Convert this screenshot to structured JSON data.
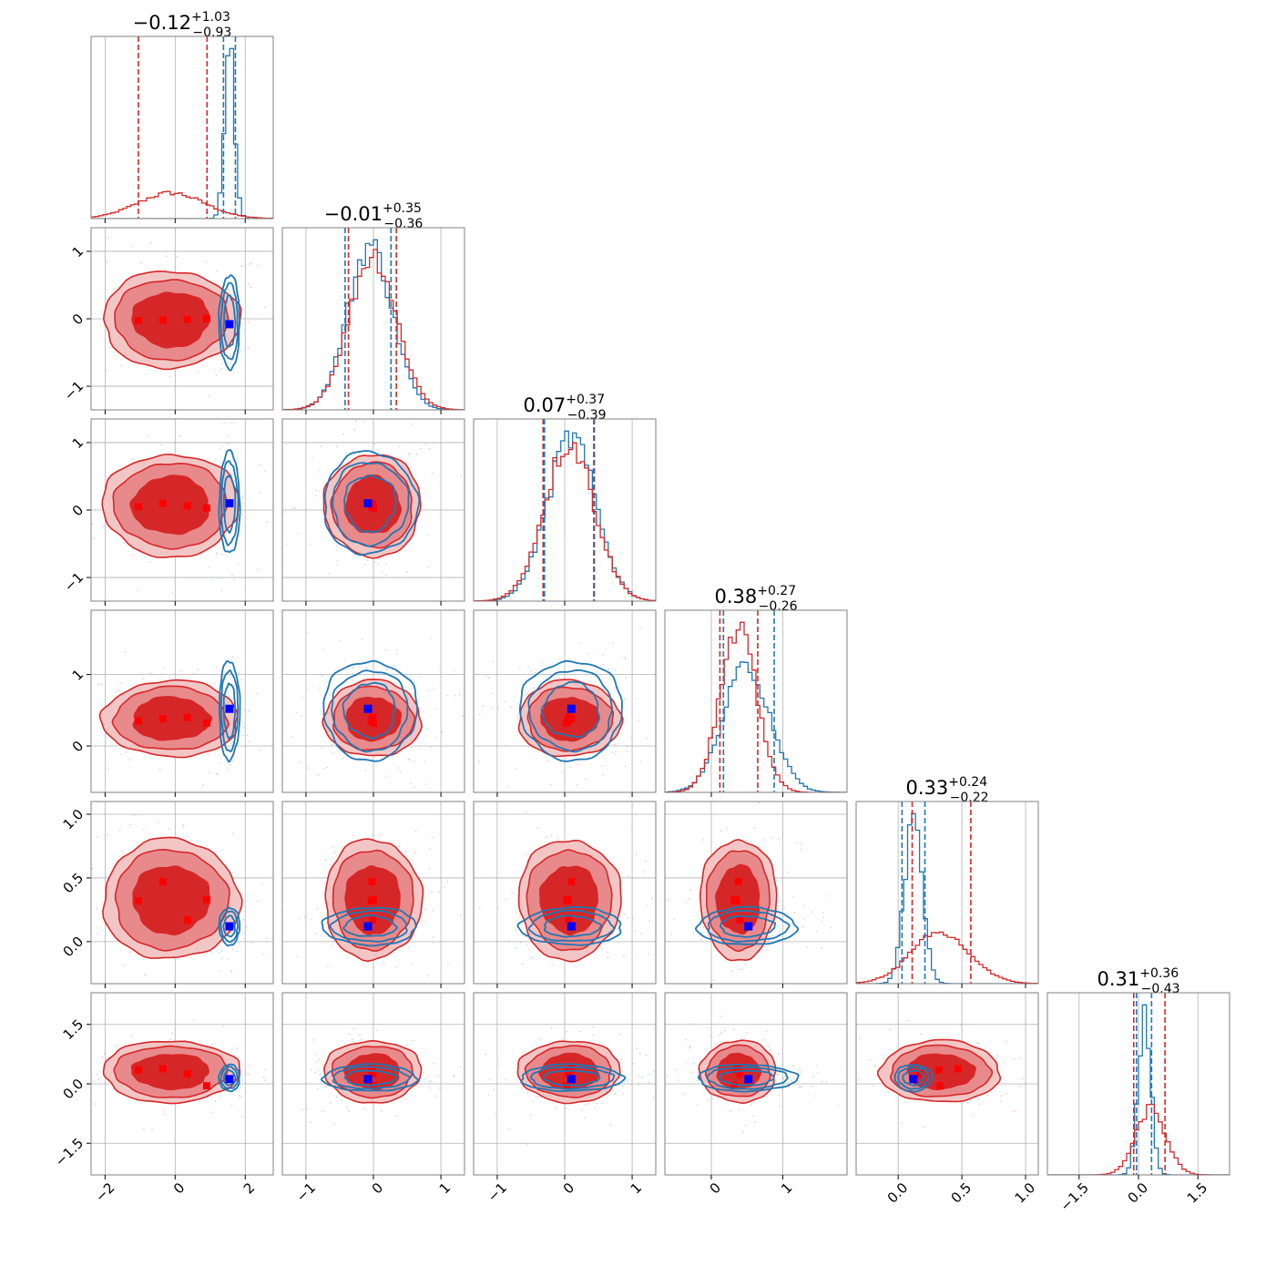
{
  "chart_data": {
    "type": "scatter",
    "kind": "corner-plot",
    "n_params": 6,
    "series": [
      {
        "name": "",
        "color": "#d62728"
      },
      {
        "name": "",
        "color": "#1f77b4"
      }
    ],
    "titles": [
      {
        "value": "−0.12",
        "plus": "+1.03",
        "minus": "−0.93"
      },
      {
        "value": "−0.01",
        "plus": "+0.35",
        "minus": "−0.36"
      },
      {
        "value": "0.07",
        "plus": "+0.37",
        "minus": "−0.39"
      },
      {
        "value": "0.38",
        "plus": "+0.27",
        "minus": "−0.26"
      },
      {
        "value": "0.33",
        "plus": "+0.24",
        "minus": "−0.22"
      },
      {
        "value": "0.31",
        "plus": "+0.36",
        "minus": "−0.43"
      }
    ],
    "ranges": [
      [
        -2.4,
        2.8
      ],
      [
        -1.35,
        1.35
      ],
      [
        -1.35,
        1.35
      ],
      [
        -0.65,
        1.9
      ],
      [
        -0.33,
        1.1
      ],
      [
        -2.3,
        2.3
      ]
    ],
    "ticks": [
      [
        {
          "v": -2,
          "t": "−2"
        },
        {
          "v": 0,
          "t": "0"
        },
        {
          "v": 2,
          "t": "2"
        }
      ],
      [
        {
          "v": -1,
          "t": "−1"
        },
        {
          "v": 0,
          "t": "0"
        },
        {
          "v": 1,
          "t": "1"
        }
      ],
      [
        {
          "v": -1,
          "t": "−1"
        },
        {
          "v": 0,
          "t": "0"
        },
        {
          "v": 1,
          "t": "1"
        }
      ],
      [
        {
          "v": 0,
          "t": "0"
        },
        {
          "v": 1,
          "t": "1"
        }
      ],
      [
        {
          "v": 0.0,
          "t": "0.0"
        },
        {
          "v": 0.5,
          "t": "0.5"
        },
        {
          "v": 1.0,
          "t": "1.0"
        }
      ],
      [
        {
          "v": -1.5,
          "t": "−1.5"
        },
        {
          "v": 0.0,
          "t": "0.0"
        },
        {
          "v": 1.5,
          "t": "1.5"
        }
      ]
    ],
    "yticks": [
      [],
      [
        {
          "v": -1,
          "t": "−1"
        },
        {
          "v": 0,
          "t": "0"
        },
        {
          "v": 1,
          "t": "1"
        }
      ],
      [
        {
          "v": -1,
          "t": "−1"
        },
        {
          "v": 0,
          "t": "0"
        },
        {
          "v": 1,
          "t": "1"
        }
      ],
      [
        {
          "v": 0,
          "t": "0"
        },
        {
          "v": 1,
          "t": "1"
        }
      ],
      [
        {
          "v": 0.0,
          "t": "0.0"
        },
        {
          "v": 0.5,
          "t": "0.5"
        },
        {
          "v": 1.0,
          "t": "1.0"
        }
      ],
      [
        {
          "v": -1.5,
          "t": "−1.5"
        },
        {
          "v": 0.0,
          "t": "0.0"
        },
        {
          "v": 1.5,
          "t": "1.5"
        }
      ]
    ],
    "red_posterior": {
      "mean": [
        -0.12,
        -0.01,
        0.07,
        0.38,
        0.33,
        0.31
      ],
      "sigma": [
        0.95,
        0.35,
        0.37,
        0.26,
        0.23,
        0.38
      ]
    },
    "blue_posterior": {
      "mean": [
        1.55,
        -0.05,
        0.1,
        0.5,
        0.12,
        0.15
      ],
      "sigma": [
        0.14,
        0.33,
        0.36,
        0.33,
        0.07,
        0.16
      ]
    },
    "red_quantile_lines": [
      [
        -1.05,
        0.91
      ],
      [
        -0.37,
        0.34
      ],
      [
        -0.32,
        0.44
      ],
      [
        0.12,
        0.65
      ],
      [
        0.11,
        0.57
      ],
      [
        -0.12,
        0.67
      ]
    ],
    "blue_quantile_lines": [
      [
        1.38,
        1.72
      ],
      [
        -0.42,
        0.26
      ],
      [
        -0.3,
        0.43
      ],
      [
        0.17,
        0.88
      ],
      [
        0.03,
        0.21
      ],
      [
        -0.05,
        0.33
      ]
    ],
    "blue_marker": [
      1.55,
      -0.08,
      0.1,
      0.52,
      0.12,
      0.12
    ],
    "red_markers": [
      [
        -1.05,
        -0.03,
        0.05,
        0.35,
        0.32,
        0.35
      ],
      [
        -0.35,
        -0.02,
        0.1,
        0.38,
        0.47,
        0.38
      ],
      [
        0.35,
        -0.01,
        0.06,
        0.4,
        0.17,
        0.25
      ],
      [
        0.9,
        0.0,
        0.03,
        0.32,
        0.33,
        -0.05
      ]
    ]
  }
}
